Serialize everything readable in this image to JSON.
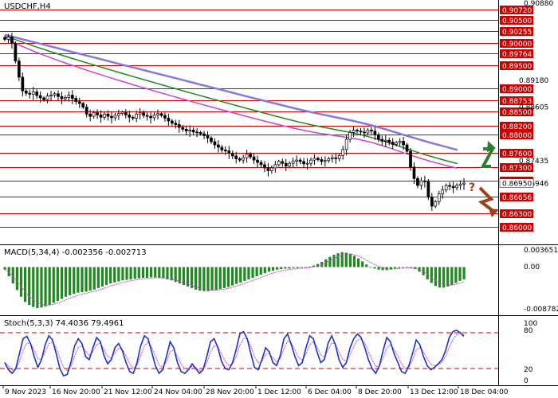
{
  "chart_data": {
    "type": "candlestick",
    "symbol_label": "USDCHF,H4",
    "price_axis": {
      "range": [
        0.8588,
        0.9089
      ],
      "top_tick": "0.90880",
      "resistance_levels": [
        "0.90720",
        "0.90500",
        "0.90255",
        "0.90000",
        "0.89764",
        "0.89500",
        "0.89000",
        "0.88753",
        "0.88500",
        "0.88200",
        "0.88000",
        "0.87600",
        "0.87300",
        "0.87000"
      ],
      "support_levels": [
        "0.86656",
        "0.86300",
        "0.86000"
      ],
      "partially_hidden_labels": [
        "0.89180",
        "0.88605",
        "0.87435",
        "0.86946"
      ],
      "current_price": 0.8695,
      "level_line_color": "#cc0000",
      "level_label_bg": "#cc0000"
    },
    "moving_averages": [
      {
        "color": "#cc44cc",
        "start": 0.9013,
        "end": 0.8727
      },
      {
        "color": "#228822",
        "start": 0.9016,
        "end": 0.8737
      },
      {
        "color": "#8877dd",
        "start": 0.9017,
        "end": 0.8767
      }
    ],
    "candles_close": [
      0.9007,
      0.9012,
      0.8998,
      0.896,
      0.8925,
      0.8895,
      0.889,
      0.8888,
      0.8893,
      0.8885,
      0.888,
      0.8876,
      0.8884,
      0.8886,
      0.8889,
      0.8883,
      0.8878,
      0.8881,
      0.8886,
      0.8879,
      0.8872,
      0.8868,
      0.886,
      0.8845,
      0.884,
      0.8848,
      0.8843,
      0.8838,
      0.8845,
      0.884,
      0.8837,
      0.8842,
      0.8846,
      0.8849,
      0.8843,
      0.8838,
      0.8836,
      0.8845,
      0.8848,
      0.8842,
      0.884,
      0.8837,
      0.8843,
      0.8846,
      0.8842,
      0.8836,
      0.883,
      0.8825,
      0.8822,
      0.8816,
      0.8812,
      0.8808,
      0.881,
      0.8806,
      0.8805,
      0.8802,
      0.8798,
      0.8793,
      0.8785,
      0.8778,
      0.8773,
      0.8767,
      0.8765,
      0.876,
      0.8754,
      0.8748,
      0.8745,
      0.875,
      0.8758,
      0.8752,
      0.8745,
      0.874,
      0.8735,
      0.8728,
      0.8722,
      0.8728,
      0.8735,
      0.8742,
      0.8738,
      0.8732,
      0.8738,
      0.8743,
      0.8745,
      0.8742,
      0.8737,
      0.8738,
      0.8745,
      0.8749,
      0.8746,
      0.8742,
      0.8744,
      0.8748,
      0.875,
      0.8748,
      0.8755,
      0.8768,
      0.879,
      0.8805,
      0.881,
      0.8808,
      0.8806,
      0.8804,
      0.881,
      0.8808,
      0.88,
      0.879,
      0.8786,
      0.8788,
      0.8784,
      0.8779,
      0.8783,
      0.8786,
      0.8778,
      0.8764,
      0.873,
      0.8705,
      0.869,
      0.87,
      0.8698,
      0.8665,
      0.8645,
      0.8655,
      0.8672,
      0.868,
      0.869,
      0.8688,
      0.8685,
      0.869,
      0.8693,
      0.8695
    ],
    "forecast_arrows": [
      {
        "direction": "up",
        "color": "#2e7d32"
      },
      {
        "direction": "down",
        "color": "#a0401a",
        "label": "?"
      }
    ],
    "time_axis_labels": [
      "9 Nov 2023",
      "16 Nov 20:00",
      "21 Nov 12:00",
      "24 Nov 04:00",
      "28 Nov 20:00",
      "1 Dec 12:00",
      "6 Dec 04:00",
      "8 Dec 20:00",
      "13 Dec 12:00",
      "18 Dec 04:00"
    ],
    "macd": {
      "label": "MACD(5,34,4) -0.002356 -0.002713",
      "axis_labels": [
        "0.003651",
        "0.00",
        "-0.008782"
      ],
      "range": [
        -0.008782,
        0.003651
      ],
      "bar_color": "#1f8a1f",
      "signal_color": "#cc44cc",
      "histogram": [
        -0.0005,
        -0.0018,
        -0.0032,
        -0.0045,
        -0.0058,
        -0.0068,
        -0.0074,
        -0.0078,
        -0.008,
        -0.0079,
        -0.0077,
        -0.0074,
        -0.007,
        -0.0066,
        -0.0062,
        -0.0058,
        -0.0055,
        -0.0052,
        -0.005,
        -0.0049,
        -0.0048,
        -0.0046,
        -0.0044,
        -0.0041,
        -0.0038,
        -0.0035,
        -0.0032,
        -0.003,
        -0.0028,
        -0.0026,
        -0.0025,
        -0.0024,
        -0.0023,
        -0.0022,
        -0.0021,
        -0.0021,
        -0.002,
        -0.002,
        -0.0021,
        -0.0022,
        -0.0024,
        -0.0026,
        -0.0029,
        -0.0032,
        -0.0035,
        -0.0038,
        -0.0041,
        -0.0044,
        -0.0046,
        -0.0047,
        -0.0047,
        -0.0046,
        -0.0045,
        -0.0043,
        -0.0041,
        -0.0039,
        -0.0036,
        -0.0033,
        -0.003,
        -0.0027,
        -0.0024,
        -0.0021,
        -0.0018,
        -0.0015,
        -0.0012,
        -0.0009,
        -0.0007,
        -0.0005,
        -0.0004,
        -0.0003,
        -0.0003,
        -0.0002,
        -0.0002,
        -0.0001,
        -0.0001,
        0.0001,
        0.0003,
        0.0006,
        0.001,
        0.0015,
        0.002,
        0.0024,
        0.0027,
        0.0029,
        0.0028,
        0.0026,
        0.0022,
        0.0017,
        0.0011,
        0.0005,
        0.0,
        -0.0003,
        -0.0005,
        -0.0006,
        -0.0006,
        -0.0005,
        -0.0003,
        -0.0002,
        -0.0001,
        -0.0001,
        -0.0002,
        -0.0004,
        -0.0009,
        -0.0016,
        -0.0024,
        -0.0031,
        -0.0037,
        -0.004,
        -0.004,
        -0.0038,
        -0.0035,
        -0.0031,
        -0.0027,
        -0.0024
      ]
    },
    "stochastic": {
      "label": "Stoch(5,3,3) 74.4036 79.4961",
      "axis_labels": [
        "100",
        "80",
        "20",
        "0"
      ],
      "levels": [
        80,
        20
      ],
      "main_color": "#1a33cc",
      "signal_color": "#cc44cc",
      "main": [
        30,
        18,
        12,
        20,
        45,
        70,
        74,
        62,
        40,
        22,
        35,
        60,
        75,
        68,
        45,
        20,
        8,
        10,
        30,
        58,
        70,
        62,
        40,
        35,
        55,
        72,
        65,
        42,
        28,
        35,
        55,
        62,
        50,
        30,
        15,
        12,
        30,
        58,
        75,
        70,
        48,
        25,
        12,
        18,
        40,
        65,
        55,
        30,
        15,
        12,
        18,
        28,
        20,
        12,
        18,
        40,
        65,
        70,
        55,
        32,
        20,
        18,
        30,
        52,
        78,
        82,
        70,
        45,
        22,
        18,
        35,
        55,
        48,
        30,
        25,
        42,
        70,
        78,
        60,
        40,
        25,
        30,
        55,
        75,
        70,
        48,
        30,
        35,
        62,
        75,
        60,
        35,
        22,
        30,
        55,
        70,
        78,
        72,
        55,
        35,
        20,
        12,
        25,
        50,
        72,
        65,
        45,
        30,
        15,
        12,
        25,
        45,
        68,
        60,
        40,
        25,
        18,
        22,
        28,
        35,
        50,
        72,
        82,
        84,
        80,
        74
      ]
    }
  }
}
